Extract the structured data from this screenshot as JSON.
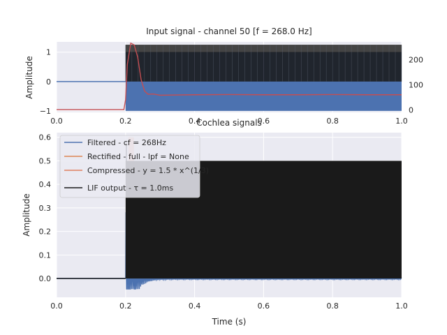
{
  "figure": {
    "background": "#ffffff",
    "axes_face": "#eaeaf2",
    "grid_color": "#ffffff"
  },
  "chart_data": [
    {
      "type": "line",
      "panel": "top",
      "title": "Input signal - channel 50 [f = 268.0 Hz]",
      "xlabel": "",
      "ylabel": "Amplitude",
      "xlim": [
        0.0,
        1.0
      ],
      "ylim": [
        -1.05,
        1.35
      ],
      "xticks": [
        0.0,
        0.2,
        0.4,
        0.6,
        0.8,
        1.0
      ],
      "xtick_labels": [
        "0.0",
        "0.2",
        "0.4",
        "0.6",
        "0.8",
        "1.0"
      ],
      "yticks": [
        -1,
        0,
        1
      ],
      "ytick_labels": [
        "−1",
        "0",
        "1"
      ],
      "y2lim": [
        -10,
        270
      ],
      "y2ticks": [
        0,
        100,
        200
      ],
      "y2tick_labels": [
        "0",
        "100",
        "200"
      ],
      "grid": true,
      "series": [
        {
          "role": "input-signal",
          "color": "#4c72b0",
          "segments": [
            {
              "kind": "flat",
              "x": [
                0.0,
                0.2
              ],
              "y": 0
            },
            {
              "kind": "oscillating-fill",
              "x": [
                0.2,
                1.0
              ],
              "ymin": -1,
              "ymax": 1
            }
          ]
        },
        {
          "role": "spike-raster",
          "color": "#1a1a1a",
          "x_range": [
            0.2,
            1.0
          ],
          "y_range": [
            0.0,
            1.25
          ]
        },
        {
          "role": "firing-rate",
          "color": "#c44e52",
          "axis": "right",
          "points": [
            [
              0.0,
              1
            ],
            [
              0.195,
              1
            ],
            [
              0.2,
              40
            ],
            [
              0.205,
              180
            ],
            [
              0.215,
              265
            ],
            [
              0.225,
              258
            ],
            [
              0.235,
              210
            ],
            [
              0.245,
              120
            ],
            [
              0.255,
              75
            ],
            [
              0.265,
              62
            ],
            [
              0.28,
              63
            ],
            [
              0.3,
              58
            ],
            [
              0.4,
              60
            ],
            [
              0.5,
              61
            ],
            [
              0.6,
              60
            ],
            [
              0.7,
              60
            ],
            [
              0.8,
              61
            ],
            [
              0.9,
              60
            ],
            [
              1.0,
              60
            ]
          ]
        }
      ]
    },
    {
      "type": "line",
      "panel": "bottom",
      "title": "Cochlea signals",
      "xlabel": "Time (s)",
      "ylabel": "Amplitude",
      "xlim": [
        0.0,
        1.0
      ],
      "ylim": [
        -0.08,
        0.62
      ],
      "xticks": [
        0.0,
        0.2,
        0.4,
        0.6,
        0.8,
        1.0
      ],
      "xtick_labels": [
        "0.0",
        "0.2",
        "0.4",
        "0.6",
        "0.8",
        "1.0"
      ],
      "yticks": [
        0.0,
        0.1,
        0.2,
        0.3,
        0.4,
        0.5,
        0.6
      ],
      "ytick_labels": [
        "0.0",
        "0.1",
        "0.2",
        "0.3",
        "0.4",
        "0.5",
        "0.6"
      ],
      "grid": true,
      "legend_position": "top-left",
      "legend": [
        {
          "label": "Filtered - cf = 268Hz",
          "color": "#4c72b0"
        },
        {
          "label": "Rectified - full - lpf = None",
          "color": "#dd8452"
        },
        {
          "label": "Compressed - y = 1.5 * x^(1/3)",
          "color": "#e08060"
        },
        {
          "label": "LIF output - τ = 1.0ms",
          "color": "#1a1a1a"
        }
      ],
      "series": [
        {
          "name": "Filtered - cf = 268Hz",
          "color": "#4c72b0",
          "segments": [
            {
              "kind": "flat",
              "x": [
                0.0,
                0.2
              ],
              "y": 0
            },
            {
              "kind": "damped-oscillation",
              "x": [
                0.2,
                1.0
              ],
              "peak": 0.58,
              "trough": -0.045,
              "settle": 0.0
            }
          ]
        },
        {
          "name": "LIF output - τ = 1.0ms",
          "color": "#1a1a1a",
          "segments": [
            {
              "kind": "flat",
              "x": [
                0.0,
                0.2
              ],
              "y": 0
            },
            {
              "kind": "spike-train",
              "x": [
                0.2,
                1.0
              ],
              "ymin": 0.0,
              "ymax": 0.5
            }
          ]
        }
      ]
    }
  ]
}
